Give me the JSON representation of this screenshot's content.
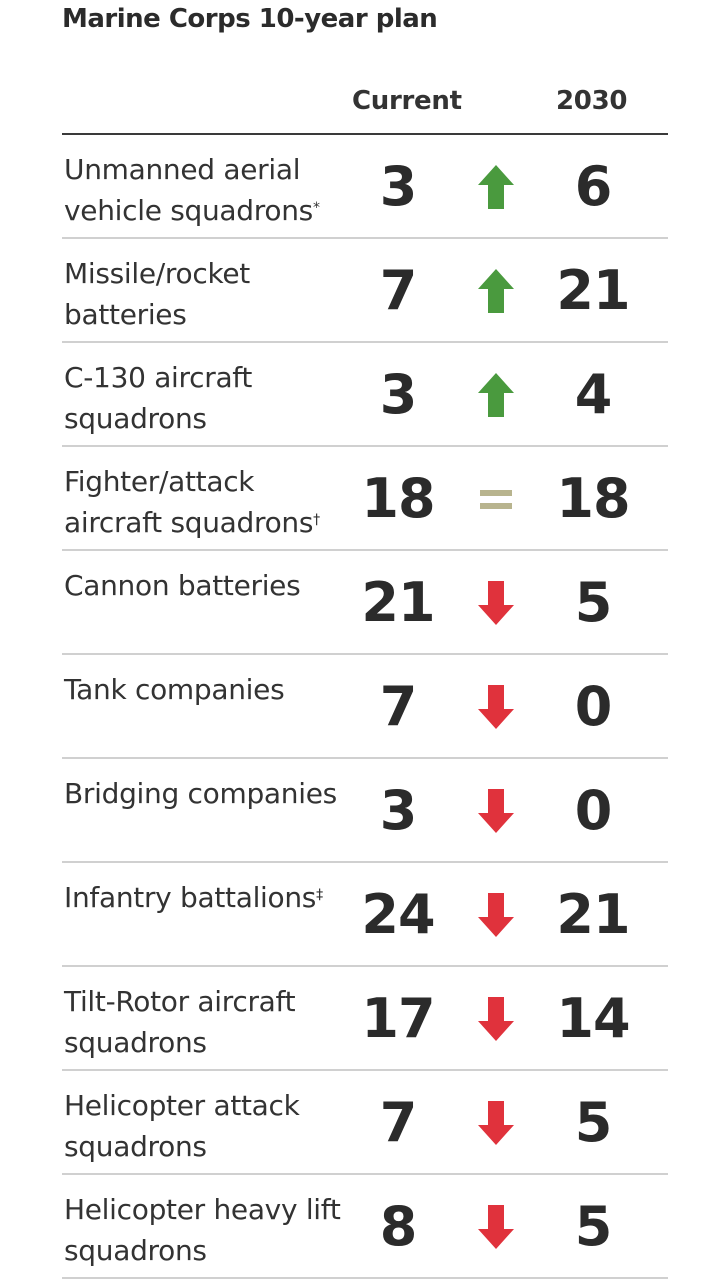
{
  "title": "Marine Corps 10-year plan",
  "columns": {
    "current": "Current",
    "future": "2030"
  },
  "colors": {
    "up": "#4a9a3e",
    "down": "#e0323c",
    "same": "#b8b48e",
    "text": "#2b2b2b",
    "rule": "#d0d0d0"
  },
  "rows": [
    {
      "label": "Unmanned aerial vehicle squadrons",
      "mark": "*",
      "current": "3",
      "future": "6",
      "trend": "up"
    },
    {
      "label": "Missile/rocket batteries",
      "mark": "",
      "current": "7",
      "future": "21",
      "trend": "up"
    },
    {
      "label": "C-130 aircraft squadrons",
      "mark": "",
      "current": "3",
      "future": "4",
      "trend": "up"
    },
    {
      "label": "Fighter/attack aircraft squadrons",
      "mark": "†",
      "current": "18",
      "future": "18",
      "trend": "same"
    },
    {
      "label": "Cannon batteries",
      "mark": "",
      "current": "21",
      "future": "5",
      "trend": "down"
    },
    {
      "label": "Tank companies",
      "mark": "",
      "current": "7",
      "future": "0",
      "trend": "down"
    },
    {
      "label": "Bridging companies",
      "mark": "",
      "current": "3",
      "future": "0",
      "trend": "down"
    },
    {
      "label": "Infantry battalions",
      "mark": "‡",
      "current": "24",
      "future": "21",
      "trend": "down"
    },
    {
      "label": "Tilt-Rotor aircraft squadrons",
      "mark": "",
      "current": "17",
      "future": "14",
      "trend": "down"
    },
    {
      "label": "Helicopter attack squadrons",
      "mark": "",
      "current": "7",
      "future": "5",
      "trend": "down"
    },
    {
      "label": "Helicopter heavy lift squadrons",
      "mark": "",
      "current": "8",
      "future": "5",
      "trend": "down"
    }
  ],
  "chart_data": {
    "type": "table",
    "title": "Marine Corps 10-year plan",
    "columns": [
      "",
      "Current",
      "2030"
    ],
    "categories": [
      "Unmanned aerial vehicle squadrons",
      "Missile/rocket batteries",
      "C-130 aircraft squadrons",
      "Fighter/attack aircraft squadrons",
      "Cannon batteries",
      "Tank companies",
      "Bridging companies",
      "Infantry battalions",
      "Tilt-Rotor aircraft squadrons",
      "Helicopter attack squadrons",
      "Helicopter heavy lift squadrons"
    ],
    "series": [
      {
        "name": "Current",
        "values": [
          3,
          7,
          3,
          18,
          21,
          7,
          3,
          24,
          17,
          7,
          8
        ]
      },
      {
        "name": "2030",
        "values": [
          6,
          21,
          4,
          18,
          5,
          0,
          0,
          21,
          14,
          5,
          5
        ]
      }
    ],
    "trend": [
      "up",
      "up",
      "up",
      "same",
      "down",
      "down",
      "down",
      "down",
      "down",
      "down",
      "down"
    ]
  }
}
